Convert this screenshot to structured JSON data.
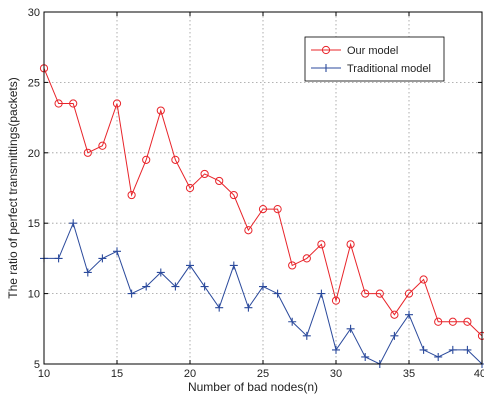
{
  "chart_data": {
    "type": "line",
    "xlabel": "Number of bad nodes(n)",
    "ylabel": "The ratio of perfect transmittings(packets)",
    "xlim": [
      10,
      40
    ],
    "ylim": [
      5,
      30
    ],
    "xticks": [
      "10",
      "15",
      "20",
      "25",
      "30",
      "35",
      "40"
    ],
    "yticks": [
      "5",
      "10",
      "15",
      "20",
      "25",
      "30"
    ],
    "grid": true,
    "legend_position": "top-right",
    "x": [
      10,
      11,
      12,
      13,
      14,
      15,
      16,
      17,
      18,
      19,
      20,
      21,
      22,
      23,
      24,
      25,
      26,
      27,
      28,
      29,
      30,
      31,
      32,
      33,
      34,
      35,
      36,
      37,
      38,
      39,
      40
    ],
    "series": [
      {
        "name": "Our model",
        "color": "#e8242a",
        "marker": "circle",
        "values": [
          26,
          23.5,
          23.5,
          20,
          20.5,
          23.5,
          17,
          19.5,
          23,
          19.5,
          17.5,
          18.5,
          18,
          17,
          14.5,
          16,
          16,
          12,
          12.5,
          13.5,
          9.5,
          13.5,
          10,
          10,
          8.5,
          10,
          11,
          8,
          8,
          8,
          7
        ]
      },
      {
        "name": "Traditional model",
        "color": "#2b4a9c",
        "marker": "plus",
        "values": [
          12.5,
          12.5,
          15,
          11.5,
          12.5,
          13,
          10,
          10.5,
          11.5,
          10.5,
          12,
          10.5,
          9,
          12,
          9,
          10.5,
          10,
          8,
          7,
          10,
          6,
          7.5,
          5.5,
          5,
          7,
          8.5,
          6,
          5.5,
          6,
          6,
          5
        ]
      }
    ]
  }
}
